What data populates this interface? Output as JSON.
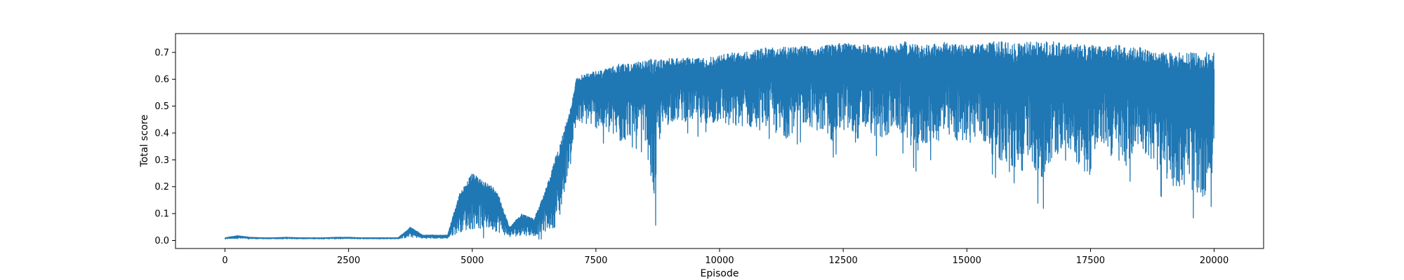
{
  "chart_data": {
    "type": "line",
    "title": "",
    "xlabel": "Episode",
    "ylabel": "Total score",
    "xlim": [
      -1000,
      21000
    ],
    "ylim": [
      -0.03,
      0.77
    ],
    "xticks": [
      0,
      2500,
      5000,
      7500,
      10000,
      12500,
      15000,
      17500,
      20000
    ],
    "yticks": [
      0.0,
      0.1,
      0.2,
      0.3,
      0.4,
      0.5,
      0.6,
      0.7
    ],
    "xtick_labels": [
      "0",
      "2500",
      "5000",
      "7500",
      "10000",
      "12500",
      "15000",
      "17500",
      "20000"
    ],
    "ytick_labels": [
      "0.0",
      "0.1",
      "0.2",
      "0.3",
      "0.4",
      "0.5",
      "0.6",
      "0.7"
    ],
    "grid": false,
    "legend": "none",
    "series": [
      {
        "color": "#1f77b4",
        "sampling_note": "approximate per-segment lower/upper score envelope",
        "x": [
          0,
          250,
          500,
          750,
          1000,
          1250,
          1500,
          1750,
          2000,
          2250,
          2500,
          2750,
          3000,
          3250,
          3500,
          3750,
          4000,
          4250,
          4500,
          4750,
          5000,
          5250,
          5500,
          5750,
          6000,
          6250,
          6500,
          6750,
          7000,
          7100,
          7250,
          7500,
          7750,
          8000,
          8250,
          8500,
          8700,
          8750,
          9000,
          9250,
          9500,
          9750,
          10000,
          10250,
          10500,
          10750,
          11000,
          11250,
          11500,
          11750,
          12000,
          12250,
          12500,
          12750,
          13000,
          13250,
          13500,
          13750,
          14000,
          14250,
          14500,
          14750,
          15000,
          15250,
          15500,
          15750,
          16000,
          16250,
          16500,
          16750,
          17000,
          17250,
          17500,
          17750,
          18000,
          18250,
          18500,
          18750,
          19000,
          19250,
          19500,
          19750,
          20000
        ],
        "low": [
          0.005,
          0.005,
          0.005,
          0.005,
          0.005,
          0.005,
          0.005,
          0.005,
          0.005,
          0.005,
          0.005,
          0.005,
          0.005,
          0.005,
          0.005,
          0.005,
          0.005,
          0.005,
          0.005,
          0.005,
          0.005,
          0.01,
          0.005,
          0.005,
          0.005,
          0.005,
          0.005,
          0.005,
          0.3,
          0.38,
          0.4,
          0.38,
          0.35,
          0.3,
          0.35,
          0.32,
          0.01,
          0.3,
          0.4,
          0.4,
          0.4,
          0.35,
          0.4,
          0.35,
          0.38,
          0.35,
          0.38,
          0.3,
          0.35,
          0.38,
          0.35,
          0.3,
          0.35,
          0.3,
          0.35,
          0.3,
          0.35,
          0.32,
          0.25,
          0.3,
          0.3,
          0.3,
          0.3,
          0.3,
          0.25,
          0.2,
          0.08,
          0.25,
          0.1,
          0.2,
          0.3,
          0.2,
          0.15,
          0.3,
          0.2,
          0.2,
          0.3,
          0.2,
          0.15,
          0.1,
          0.1,
          0.05,
          0.15
        ],
        "high": [
          0.01,
          0.018,
          0.012,
          0.01,
          0.01,
          0.012,
          0.01,
          0.01,
          0.01,
          0.012,
          0.012,
          0.01,
          0.01,
          0.01,
          0.01,
          0.05,
          0.02,
          0.02,
          0.02,
          0.18,
          0.25,
          0.22,
          0.19,
          0.05,
          0.1,
          0.08,
          0.2,
          0.35,
          0.5,
          0.6,
          0.62,
          0.63,
          0.64,
          0.66,
          0.66,
          0.67,
          0.68,
          0.67,
          0.68,
          0.68,
          0.68,
          0.68,
          0.69,
          0.7,
          0.7,
          0.71,
          0.72,
          0.72,
          0.72,
          0.73,
          0.72,
          0.73,
          0.74,
          0.73,
          0.73,
          0.72,
          0.73,
          0.74,
          0.73,
          0.73,
          0.74,
          0.73,
          0.73,
          0.73,
          0.74,
          0.74,
          0.73,
          0.74,
          0.74,
          0.74,
          0.73,
          0.73,
          0.73,
          0.72,
          0.73,
          0.72,
          0.72,
          0.7,
          0.7,
          0.7,
          0.7,
          0.7,
          0.7
        ]
      }
    ]
  }
}
